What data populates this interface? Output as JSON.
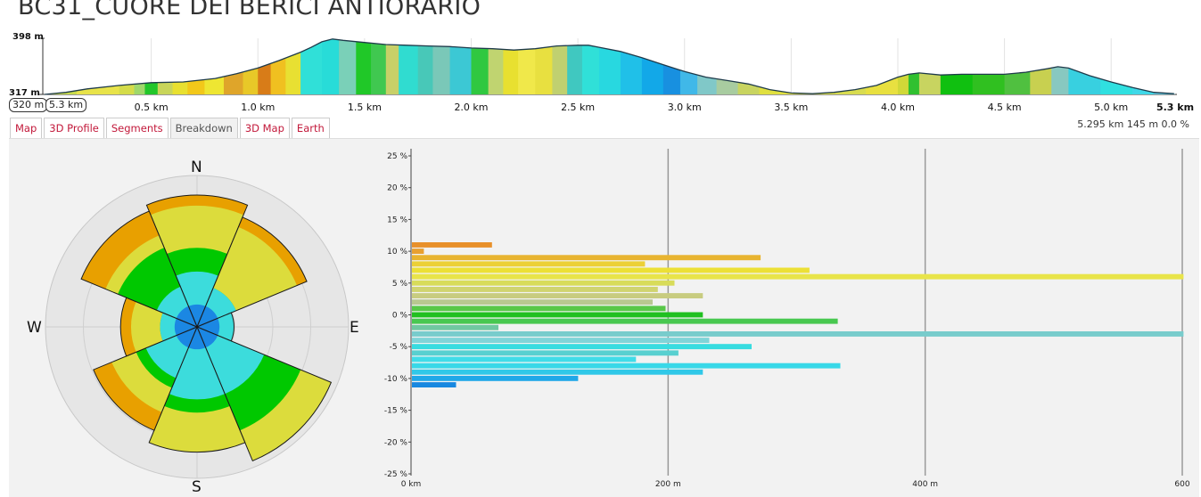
{
  "title": "BC31_CUORE DEI BERICI ANTIORARIO",
  "profile": {
    "elev_max": "398 m",
    "elev_min": "317 m",
    "current_elevation": "320 m",
    "current_distance": "5.3 km",
    "km_ticks": [
      "0.5 km",
      "1.0 km",
      "1.5 km",
      "2.0 km",
      "2.5 km",
      "3.0 km",
      "3.5 km",
      "4.0 km",
      "4.5 km",
      "5.0 km"
    ],
    "km_tick_values": [
      0.5,
      1.0,
      1.5,
      2.0,
      2.5,
      3.0,
      3.5,
      4.0,
      4.5,
      5.0
    ],
    "end_label": "5.3 km",
    "total_km": 5.3,
    "elev_points": [
      [
        0,
        317
      ],
      [
        0.1,
        320
      ],
      [
        0.2,
        325
      ],
      [
        0.35,
        330
      ],
      [
        0.5,
        334
      ],
      [
        0.65,
        335
      ],
      [
        0.8,
        340
      ],
      [
        0.9,
        347
      ],
      [
        1.0,
        355
      ],
      [
        1.1,
        366
      ],
      [
        1.2,
        378
      ],
      [
        1.25,
        385
      ],
      [
        1.3,
        393
      ],
      [
        1.35,
        397
      ],
      [
        1.4,
        395
      ],
      [
        1.5,
        392
      ],
      [
        1.6,
        389
      ],
      [
        1.7,
        388
      ],
      [
        1.8,
        387
      ],
      [
        1.9,
        386
      ],
      [
        2.0,
        384
      ],
      [
        2.1,
        383
      ],
      [
        2.2,
        381
      ],
      [
        2.3,
        383
      ],
      [
        2.4,
        387
      ],
      [
        2.5,
        388
      ],
      [
        2.55,
        388
      ],
      [
        2.6,
        385
      ],
      [
        2.7,
        379
      ],
      [
        2.8,
        370
      ],
      [
        2.9,
        360
      ],
      [
        3.0,
        350
      ],
      [
        3.1,
        342
      ],
      [
        3.2,
        337
      ],
      [
        3.3,
        332
      ],
      [
        3.4,
        324
      ],
      [
        3.5,
        319
      ],
      [
        3.6,
        318
      ],
      [
        3.7,
        320
      ],
      [
        3.8,
        324
      ],
      [
        3.9,
        330
      ],
      [
        4.0,
        342
      ],
      [
        4.05,
        346
      ],
      [
        4.1,
        348
      ],
      [
        4.2,
        345
      ],
      [
        4.3,
        346
      ],
      [
        4.4,
        346
      ],
      [
        4.5,
        346
      ],
      [
        4.6,
        349
      ],
      [
        4.7,
        354
      ],
      [
        4.75,
        357
      ],
      [
        4.8,
        355
      ],
      [
        4.9,
        344
      ],
      [
        5.0,
        335
      ],
      [
        5.1,
        327
      ],
      [
        5.2,
        320
      ],
      [
        5.295,
        318
      ]
    ],
    "color_segments": [
      [
        0,
        "#c9dc4a"
      ],
      [
        0.15,
        "#e8e34a"
      ],
      [
        0.35,
        "#d4dc4a"
      ],
      [
        0.42,
        "#9fd86b"
      ],
      [
        0.47,
        "#22c62a"
      ],
      [
        0.53,
        "#c8d55a"
      ],
      [
        0.6,
        "#e8e030"
      ],
      [
        0.67,
        "#f2c81a"
      ],
      [
        0.75,
        "#eee632"
      ],
      [
        0.84,
        "#dfa52a"
      ],
      [
        0.93,
        "#e8c828"
      ],
      [
        1.0,
        "#d87c18"
      ],
      [
        1.06,
        "#f0c020"
      ],
      [
        1.13,
        "#e8e032"
      ],
      [
        1.2,
        "#30e0d8"
      ],
      [
        1.3,
        "#28dcd8"
      ],
      [
        1.38,
        "#7ad0b8"
      ],
      [
        1.46,
        "#20c828"
      ],
      [
        1.53,
        "#40c850"
      ],
      [
        1.6,
        "#c8d068"
      ],
      [
        1.66,
        "#30dcd0"
      ],
      [
        1.75,
        "#48c8b8"
      ],
      [
        1.82,
        "#7ac8b8"
      ],
      [
        1.9,
        "#3cc8d4"
      ],
      [
        2.0,
        "#30c840"
      ],
      [
        2.08,
        "#c0d470"
      ],
      [
        2.15,
        "#e8e030"
      ],
      [
        2.22,
        "#f0e84a"
      ],
      [
        2.3,
        "#e8e040"
      ],
      [
        2.38,
        "#c0d070"
      ],
      [
        2.45,
        "#40c8c0"
      ],
      [
        2.52,
        "#30e0d8"
      ],
      [
        2.6,
        "#28d8e0"
      ],
      [
        2.7,
        "#20c0e8"
      ],
      [
        2.8,
        "#12a8e8"
      ],
      [
        2.9,
        "#1890e0"
      ],
      [
        2.98,
        "#40b8e8"
      ],
      [
        3.06,
        "#80c8c8"
      ],
      [
        3.15,
        "#a8cca0"
      ],
      [
        3.25,
        "#c8d460"
      ],
      [
        3.35,
        "#e0e040"
      ],
      [
        3.55,
        "#e0e448"
      ],
      [
        3.7,
        "#d8dc50"
      ],
      [
        3.85,
        "#e8e040"
      ],
      [
        4.0,
        "#d0d838"
      ],
      [
        4.05,
        "#30c030"
      ],
      [
        4.1,
        "#c8d460"
      ],
      [
        4.2,
        "#10c010"
      ],
      [
        4.35,
        "#30c020"
      ],
      [
        4.5,
        "#50c040"
      ],
      [
        4.62,
        "#c8d050"
      ],
      [
        4.72,
        "#88c8c0"
      ],
      [
        4.8,
        "#38d0e0"
      ],
      [
        4.95,
        "#30e0e0"
      ],
      [
        5.1,
        "#40d8e8"
      ],
      [
        5.2,
        "#60c8e0"
      ]
    ]
  },
  "tabs": [
    {
      "label": "Map",
      "active": false
    },
    {
      "label": "3D Profile",
      "active": false
    },
    {
      "label": "Segments",
      "active": false
    },
    {
      "label": "Breakdown",
      "active": true
    },
    {
      "label": "3D Map",
      "active": false
    },
    {
      "label": "Earth",
      "active": false
    }
  ],
  "stats": "5.295 km 145 m 0.0 %",
  "rose": {
    "labels": {
      "n": "N",
      "s": "S",
      "e": "E",
      "w": "W"
    },
    "ring_colors": [
      "#1b87e3",
      "#3cdcdc",
      "#00c800",
      "#dcdc3c",
      "#e8a000"
    ],
    "sectors": [
      {
        "dir": "N",
        "rings": [
          0.17,
          0.42,
          0.6,
          0.92,
          1.0
        ]
      },
      {
        "dir": "NE",
        "rings": [
          0.17,
          0.32,
          0.32,
          0.82,
          0.9
        ]
      },
      {
        "dir": "E",
        "rings": [
          0.17,
          0.28,
          0.28,
          0.28,
          0.28
        ]
      },
      {
        "dir": "SE",
        "rings": [
          0.17,
          0.55,
          0.85,
          1.1,
          1.1
        ]
      },
      {
        "dir": "S",
        "rings": [
          0.17,
          0.55,
          0.65,
          0.95,
          0.95
        ]
      },
      {
        "dir": "SW",
        "rings": [
          0.17,
          0.42,
          0.5,
          0.7,
          0.85
        ]
      },
      {
        "dir": "W",
        "rings": [
          0.17,
          0.28,
          0.28,
          0.5,
          0.58
        ]
      },
      {
        "dir": "NW",
        "rings": [
          0.17,
          0.33,
          0.65,
          0.75,
          0.95
        ]
      }
    ]
  },
  "chart_data": {
    "type": "bar",
    "orientation": "horizontal",
    "ylabel_ticks": [
      "25 %",
      "20 %",
      "15 %",
      "10 %",
      "5 %",
      "0 %",
      "-5 %",
      "-10 %",
      "-15 %",
      "-20 %",
      "-25 %"
    ],
    "xlabel_ticks": [
      "0 km",
      "200 m",
      "400 m",
      "600"
    ],
    "x_tick_values": [
      0,
      200,
      400,
      600
    ],
    "ylim": [
      -25,
      25
    ],
    "xlim": [
      0,
      605
    ],
    "bars": [
      {
        "grade": 11,
        "meters": 63,
        "color": "#e8902a"
      },
      {
        "grade": 10,
        "meters": 10,
        "color": "#e8a030"
      },
      {
        "grade": 9,
        "meters": 272,
        "color": "#e8b430"
      },
      {
        "grade": 8,
        "meters": 182,
        "color": "#ecd036"
      },
      {
        "grade": 7,
        "meters": 310,
        "color": "#ece036"
      },
      {
        "grade": 6,
        "meters": 601,
        "color": "#e8e44a"
      },
      {
        "grade": 5,
        "meters": 205,
        "color": "#d8dc5a"
      },
      {
        "grade": 4,
        "meters": 192,
        "color": "#d0d470"
      },
      {
        "grade": 3,
        "meters": 227,
        "color": "#c8cc80"
      },
      {
        "grade": 2,
        "meters": 188,
        "color": "#b8c890"
      },
      {
        "grade": 1,
        "meters": 198,
        "color": "#58c848"
      },
      {
        "grade": 0,
        "meters": 227,
        "color": "#20c020"
      },
      {
        "grade": -1,
        "meters": 332,
        "color": "#48c850"
      },
      {
        "grade": -2,
        "meters": 68,
        "color": "#70c8a0"
      },
      {
        "grade": -3,
        "meters": 601,
        "color": "#78cccc"
      },
      {
        "grade": -4,
        "meters": 232,
        "color": "#80d4d8"
      },
      {
        "grade": -5,
        "meters": 265,
        "color": "#38dce0"
      },
      {
        "grade": -6,
        "meters": 208,
        "color": "#58d0d0"
      },
      {
        "grade": -7,
        "meters": 175,
        "color": "#40dce8"
      },
      {
        "grade": -8,
        "meters": 334,
        "color": "#38d8e8"
      },
      {
        "grade": -9,
        "meters": 227,
        "color": "#30c8e8"
      },
      {
        "grade": -10,
        "meters": 130,
        "color": "#20a8e8"
      },
      {
        "grade": -11,
        "meters": 35,
        "color": "#1888e0"
      }
    ]
  }
}
